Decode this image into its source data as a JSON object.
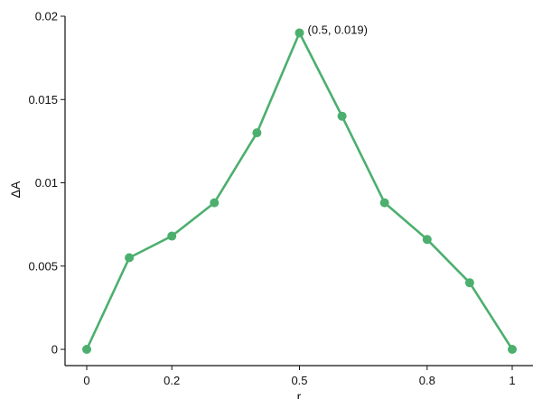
{
  "chart_data": {
    "type": "line",
    "title": "",
    "xlabel": "r",
    "ylabel": "ΔA",
    "xlim": [
      0,
      1
    ],
    "ylim": [
      0,
      0.02
    ],
    "xticks": [
      {
        "value": 0,
        "label": "0"
      },
      {
        "value": 0.2,
        "label": "0.2"
      },
      {
        "value": 0.5,
        "label": "0.5"
      },
      {
        "value": 0.8,
        "label": "0.8"
      },
      {
        "value": 1,
        "label": "1"
      }
    ],
    "yticks": [
      {
        "value": 0,
        "label": "0"
      },
      {
        "value": 0.005,
        "label": "0.005"
      },
      {
        "value": 0.01,
        "label": "0.01"
      },
      {
        "value": 0.015,
        "label": "0.015"
      },
      {
        "value": 0.02,
        "label": "0.02"
      }
    ],
    "grid": false,
    "legend": "none",
    "series": [
      {
        "color": "#4caf6e",
        "x": [
          0,
          0.1,
          0.2,
          0.3,
          0.4,
          0.5,
          0.6,
          0.7,
          0.8,
          0.9,
          1.0
        ],
        "y": [
          0,
          0.0055,
          0.0068,
          0.0088,
          0.013,
          0.019,
          0.014,
          0.0088,
          0.0066,
          0.004,
          0
        ]
      }
    ],
    "annotations": [
      {
        "text": "(0.5, 0.019)",
        "x": 0.5,
        "y": 0.019
      }
    ]
  }
}
